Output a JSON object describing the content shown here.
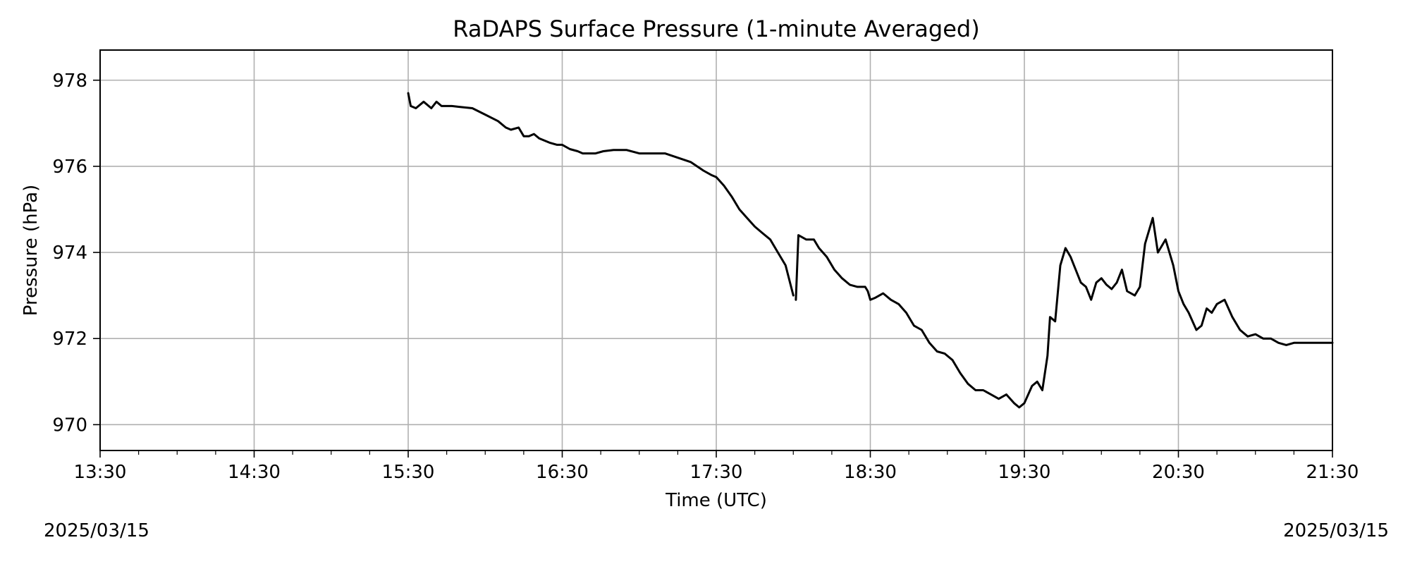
{
  "chart_data": {
    "type": "line",
    "title": "RaDAPS Surface Pressure (1-minute Averaged)",
    "xlabel": "Time (UTC)",
    "ylabel": "Pressure (hPa)",
    "xlim": [
      "13:30",
      "21:30"
    ],
    "ylim": [
      969.4,
      978.7
    ],
    "x_ticks": [
      "13:30",
      "14:30",
      "15:30",
      "16:30",
      "17:30",
      "18:30",
      "19:30",
      "20:30",
      "21:30"
    ],
    "y_ticks": [
      970,
      972,
      974,
      976,
      978
    ],
    "grid": true,
    "line_color": "#000000",
    "grid_color": "#b0b0b0",
    "segments": [
      {
        "x": [
          "15:30",
          "15:31",
          "15:33",
          "15:36",
          "15:39",
          "15:41",
          "15:43",
          "15:45",
          "15:47",
          "15:50",
          "15:55",
          "16:00",
          "16:05",
          "16:08",
          "16:10",
          "16:13",
          "16:15",
          "16:17",
          "16:19",
          "16:21",
          "16:23",
          "16:25",
          "16:28",
          "16:30",
          "16:33",
          "16:36",
          "16:38",
          "16:40",
          "16:43",
          "16:46",
          "16:50",
          "16:55",
          "17:00",
          "17:05",
          "17:10",
          "17:15",
          "17:20",
          "17:25",
          "17:28",
          "17:30",
          "17:33",
          "17:36",
          "17:39",
          "17:42",
          "17:45",
          "17:48",
          "17:51",
          "17:54",
          "17:57",
          "18:00"
        ],
        "y": [
          977.7,
          977.4,
          977.35,
          977.5,
          977.35,
          977.5,
          977.4,
          977.4,
          977.4,
          977.38,
          977.35,
          977.2,
          977.05,
          976.9,
          976.85,
          976.9,
          976.7,
          976.7,
          976.75,
          976.65,
          976.6,
          976.55,
          976.5,
          976.5,
          976.4,
          976.35,
          976.3,
          976.3,
          976.3,
          976.35,
          976.38,
          976.38,
          976.3,
          976.3,
          976.3,
          976.2,
          976.1,
          975.9,
          975.8,
          975.75,
          975.55,
          975.3,
          975.0,
          974.8,
          974.6,
          974.45,
          974.3,
          974.0,
          973.7,
          973.0
        ]
      },
      {
        "x": [
          "18:01",
          "18:02",
          "18:05",
          "18:08",
          "18:10",
          "18:13",
          "18:16",
          "18:19",
          "18:22",
          "18:25",
          "18:28",
          "18:29",
          "18:30",
          "18:32",
          "18:35",
          "18:38",
          "18:41",
          "18:44",
          "18:47",
          "18:50",
          "18:53",
          "18:56",
          "18:59",
          "19:02",
          "19:05",
          "19:08",
          "19:11",
          "19:14",
          "19:17",
          "19:20",
          "19:23",
          "19:26",
          "19:28",
          "19:30",
          "19:33",
          "19:35",
          "19:37",
          "19:39",
          "19:40",
          "19:42",
          "19:44",
          "19:46",
          "19:48",
          "19:50",
          "19:52",
          "19:54",
          "19:56",
          "19:58",
          "20:00",
          "20:02",
          "20:04",
          "20:06",
          "20:08",
          "20:10",
          "20:13",
          "20:15",
          "20:17",
          "20:20",
          "20:22",
          "20:25",
          "20:28",
          "20:30",
          "20:32",
          "20:34",
          "20:37",
          "20:39",
          "20:41",
          "20:43",
          "20:45",
          "20:48",
          "20:51",
          "20:54",
          "20:57",
          "21:00",
          "21:03",
          "21:06",
          "21:09",
          "21:12",
          "21:15",
          "21:18",
          "21:21",
          "21:24",
          "21:27",
          "21:29",
          "21:30"
        ],
        "y": [
          972.9,
          974.4,
          974.3,
          974.3,
          974.1,
          973.9,
          973.6,
          973.4,
          973.25,
          973.2,
          973.2,
          973.1,
          972.9,
          972.95,
          973.05,
          972.9,
          972.8,
          972.6,
          972.3,
          972.2,
          971.9,
          971.7,
          971.65,
          971.5,
          971.2,
          970.95,
          970.8,
          970.8,
          970.7,
          970.6,
          970.7,
          970.5,
          970.4,
          970.5,
          970.9,
          971.0,
          970.8,
          971.6,
          972.5,
          972.4,
          973.7,
          974.1,
          973.9,
          973.6,
          973.3,
          973.2,
          972.9,
          973.3,
          973.4,
          973.25,
          973.15,
          973.3,
          973.6,
          973.1,
          973.0,
          973.2,
          974.2,
          974.8,
          974.0,
          974.3,
          973.7,
          973.1,
          972.8,
          972.6,
          972.2,
          972.3,
          972.7,
          972.6,
          972.8,
          972.9,
          972.5,
          972.2,
          972.05,
          972.1,
          972.0,
          972.0,
          971.9,
          971.85,
          971.9,
          971.9,
          971.9,
          971.9,
          971.9,
          971.9,
          971.9
        ]
      }
    ]
  },
  "dates": {
    "left": "2025/03/15",
    "right": "2025/03/15"
  }
}
